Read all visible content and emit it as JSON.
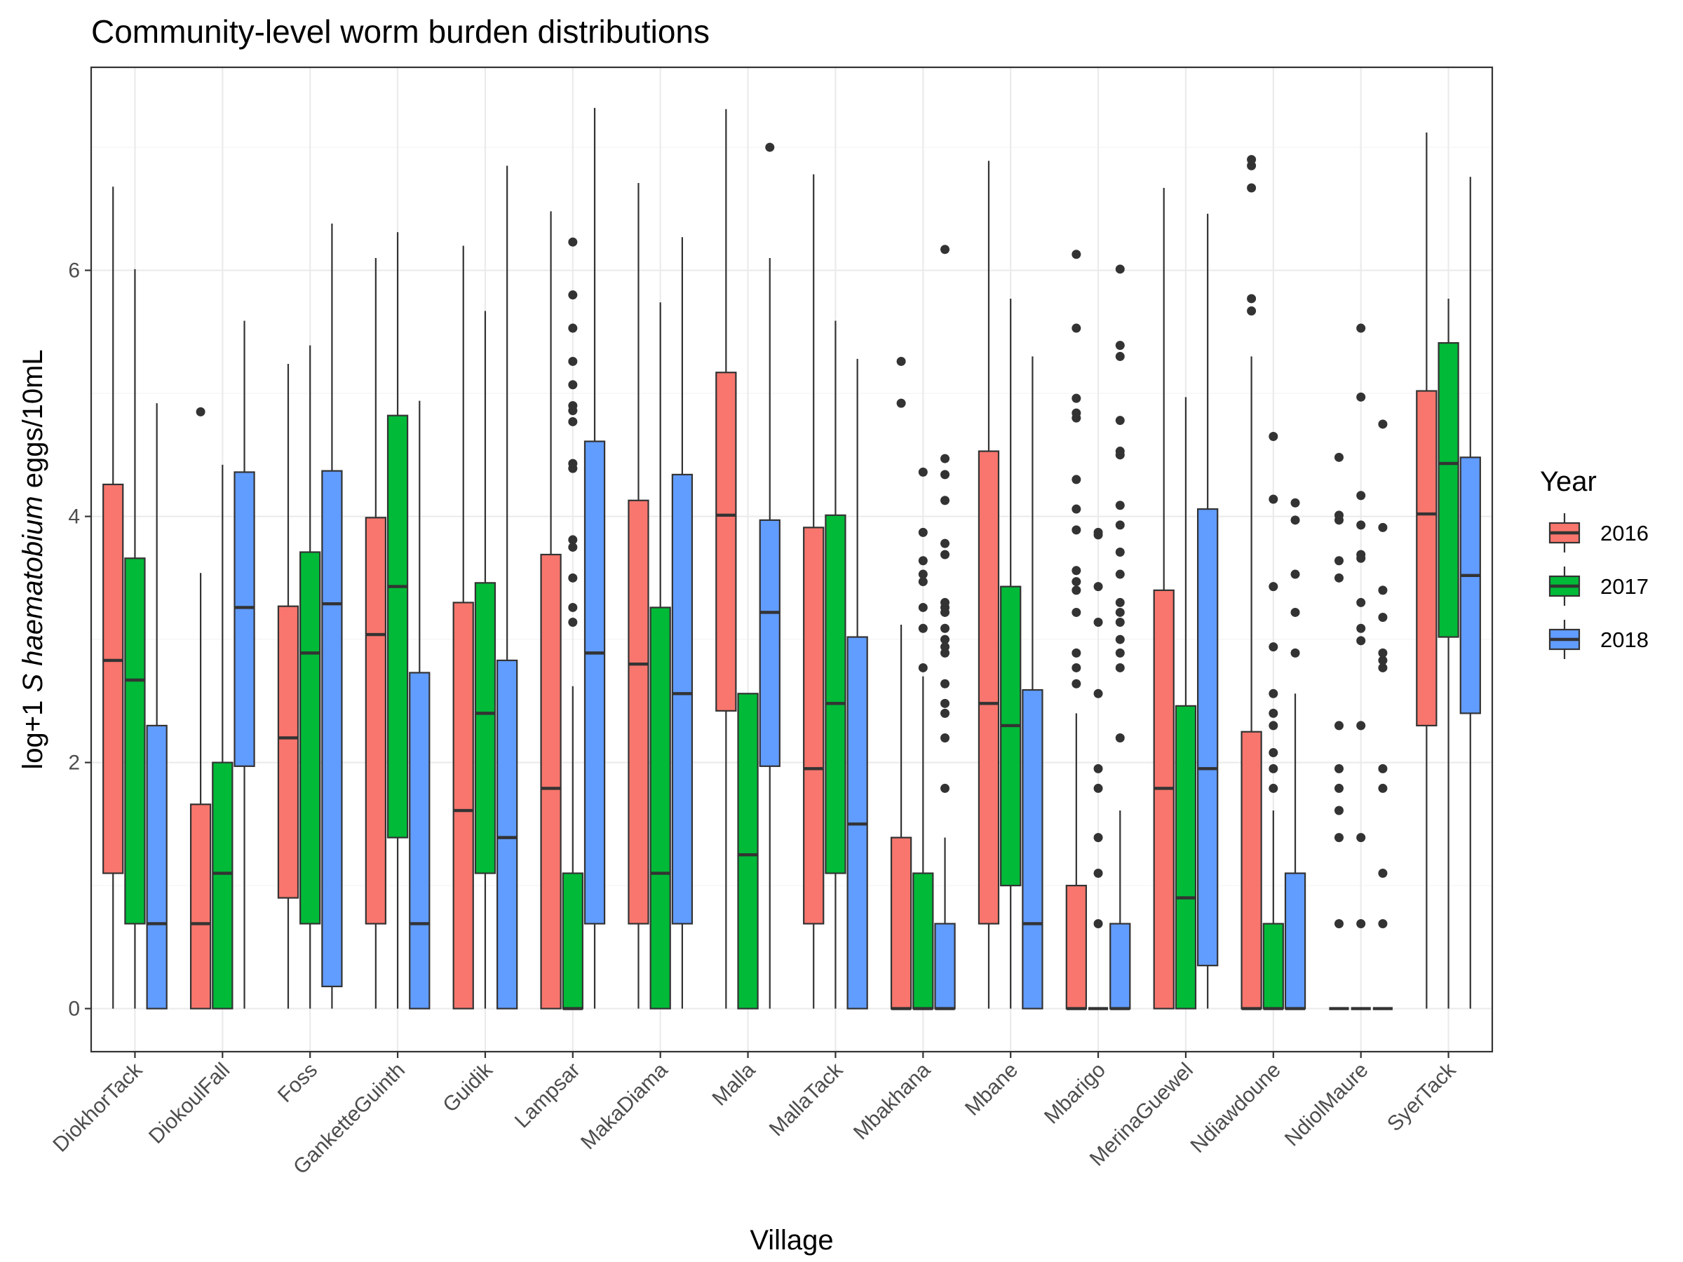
{
  "chart_data": {
    "type": "box",
    "title": "Community-level worm burden distributions",
    "xlabel": "Village",
    "ylabel_parts": [
      "log+1 ",
      "S haematobium",
      " eggs/10mL"
    ],
    "ylim": [
      -0.35,
      7.65
    ],
    "yticks": [
      0,
      2,
      4,
      6
    ],
    "legend": {
      "title": "Year",
      "position": "right",
      "items": [
        {
          "label": "2016",
          "color": "#F8766D"
        },
        {
          "label": "2017",
          "color": "#00BA38"
        },
        {
          "label": "2018",
          "color": "#619CFF"
        }
      ]
    },
    "categories": [
      "DiokhorTack",
      "DiokoulFall",
      "Foss",
      "GanketteGuinth",
      "Guidik",
      "Lampsar",
      "MakaDiama",
      "Malla",
      "MallaTack",
      "Mbakhana",
      "Mbane",
      "Mbarigo",
      "MerinaGuewel",
      "Ndiawdoune",
      "NdiolMaure",
      "SyerTack"
    ],
    "series": [
      {
        "name": "2016",
        "color": "#F8766D",
        "boxes": [
          {
            "lower": 0,
            "q1": 1.1,
            "median": 2.83,
            "q3": 4.26,
            "upper": 6.68,
            "outliers": []
          },
          {
            "lower": 0,
            "q1": 0,
            "median": 0.69,
            "q3": 1.66,
            "upper": 3.54,
            "outliers": [
              4.85
            ]
          },
          {
            "lower": 0,
            "q1": 0.9,
            "median": 2.2,
            "q3": 3.27,
            "upper": 5.24,
            "outliers": []
          },
          {
            "lower": 0,
            "q1": 0.69,
            "median": 3.04,
            "q3": 3.99,
            "upper": 6.1,
            "outliers": []
          },
          {
            "lower": 0,
            "q1": 0,
            "median": 1.61,
            "q3": 3.3,
            "upper": 6.2,
            "outliers": []
          },
          {
            "lower": 0,
            "q1": 0,
            "median": 1.79,
            "q3": 3.69,
            "upper": 6.48,
            "outliers": []
          },
          {
            "lower": 0,
            "q1": 0.69,
            "median": 2.8,
            "q3": 4.13,
            "upper": 6.71,
            "outliers": []
          },
          {
            "lower": 0,
            "q1": 2.42,
            "median": 4.01,
            "q3": 5.17,
            "upper": 7.31,
            "outliers": []
          },
          {
            "lower": 0,
            "q1": 0.69,
            "median": 1.95,
            "q3": 3.91,
            "upper": 6.78,
            "outliers": []
          },
          {
            "lower": 0,
            "q1": 0,
            "median": 0,
            "q3": 1.39,
            "upper": 3.12,
            "outliers": [
              4.92,
              5.26
            ]
          },
          {
            "lower": 0,
            "q1": 0.69,
            "median": 2.48,
            "q3": 4.53,
            "upper": 6.89,
            "outliers": []
          },
          {
            "lower": 0,
            "q1": 0,
            "median": 0,
            "q3": 1.0,
            "upper": 2.4,
            "outliers": [
              2.64,
              2.77,
              2.89,
              3.22,
              3.4,
              3.47,
              3.56,
              3.89,
              4.06,
              4.3,
              4.8,
              4.84,
              4.96,
              5.53,
              6.13
            ]
          },
          {
            "lower": 0,
            "q1": 0,
            "median": 1.79,
            "q3": 3.4,
            "upper": 6.67,
            "outliers": []
          },
          {
            "lower": 0,
            "q1": 0,
            "median": 0,
            "q3": 2.25,
            "upper": 5.3,
            "outliers": [
              5.67,
              5.77,
              6.67,
              6.85,
              6.9
            ]
          },
          {
            "lower": 0,
            "q1": 0,
            "median": 0,
            "q3": 0,
            "upper": 0,
            "outliers": [
              0.69,
              1.39,
              1.61,
              1.79,
              1.95,
              2.3,
              3.5,
              3.64,
              3.97,
              4.01,
              4.48
            ]
          },
          {
            "lower": 0,
            "q1": 2.3,
            "median": 4.02,
            "q3": 5.02,
            "upper": 7.12,
            "outliers": []
          }
        ]
      },
      {
        "name": "2017",
        "color": "#00BA38",
        "boxes": [
          {
            "lower": 0,
            "q1": 0.69,
            "median": 2.67,
            "q3": 3.66,
            "upper": 6.01,
            "outliers": []
          },
          {
            "lower": 0,
            "q1": 0,
            "median": 1.1,
            "q3": 2.0,
            "upper": 4.42,
            "outliers": []
          },
          {
            "lower": 0,
            "q1": 0.69,
            "median": 2.89,
            "q3": 3.71,
            "upper": 5.39,
            "outliers": []
          },
          {
            "lower": 0,
            "q1": 1.39,
            "median": 3.43,
            "q3": 4.82,
            "upper": 6.31,
            "outliers": []
          },
          {
            "lower": 0,
            "q1": 1.1,
            "median": 2.4,
            "q3": 3.46,
            "upper": 5.67,
            "outliers": []
          },
          {
            "lower": 0,
            "q1": 0,
            "median": 0,
            "q3": 1.1,
            "upper": 2.62,
            "outliers": [
              3.14,
              3.26,
              3.5,
              3.75,
              3.81,
              4.39,
              4.43,
              4.77,
              4.86,
              4.9,
              5.07,
              5.26,
              5.53,
              5.8,
              6.23
            ]
          },
          {
            "lower": 0,
            "q1": 0,
            "median": 1.1,
            "q3": 3.26,
            "upper": 5.74,
            "outliers": []
          },
          {
            "lower": 0,
            "q1": 0,
            "median": 1.25,
            "q3": 2.56,
            "upper": 2.56,
            "outliers": []
          },
          {
            "lower": 0,
            "q1": 1.1,
            "median": 2.48,
            "q3": 4.01,
            "upper": 5.59,
            "outliers": []
          },
          {
            "lower": 0,
            "q1": 0,
            "median": 0,
            "q3": 1.1,
            "upper": 2.7,
            "outliers": [
              2.77,
              3.09,
              3.26,
              3.47,
              3.53,
              3.64,
              3.87,
              4.36
            ]
          },
          {
            "lower": 0,
            "q1": 1.0,
            "median": 2.3,
            "q3": 3.43,
            "upper": 5.77,
            "outliers": []
          },
          {
            "lower": 0,
            "q1": 0,
            "median": 0,
            "q3": 0,
            "upper": 0,
            "outliers": [
              0.69,
              1.1,
              1.39,
              1.79,
              1.95,
              2.56,
              3.14,
              3.43,
              3.85,
              3.87
            ]
          },
          {
            "lower": 0,
            "q1": 0,
            "median": 0.9,
            "q3": 2.46,
            "upper": 4.97,
            "outliers": []
          },
          {
            "lower": 0,
            "q1": 0,
            "median": 0,
            "q3": 0.69,
            "upper": 1.61,
            "outliers": [
              1.79,
              1.95,
              2.08,
              2.3,
              2.4,
              2.56,
              2.94,
              3.43,
              4.14,
              4.65
            ]
          },
          {
            "lower": 0,
            "q1": 0,
            "median": 0,
            "q3": 0,
            "upper": 0,
            "outliers": [
              0.69,
              1.39,
              2.3,
              2.99,
              3.09,
              3.3,
              3.66,
              3.69,
              3.93,
              4.17,
              4.97,
              5.53
            ]
          },
          {
            "lower": 0,
            "q1": 3.02,
            "median": 4.43,
            "q3": 5.41,
            "upper": 5.77,
            "outliers": []
          }
        ]
      },
      {
        "name": "2018",
        "color": "#619CFF",
        "boxes": [
          {
            "lower": 0,
            "q1": 0,
            "median": 0.69,
            "q3": 2.3,
            "upper": 4.92,
            "outliers": []
          },
          {
            "lower": 0,
            "q1": 1.97,
            "median": 3.26,
            "q3": 4.36,
            "upper": 5.59,
            "outliers": []
          },
          {
            "lower": 0,
            "q1": 0.18,
            "median": 3.29,
            "q3": 4.37,
            "upper": 6.38,
            "outliers": []
          },
          {
            "lower": 0,
            "q1": 0,
            "median": 0.69,
            "q3": 2.73,
            "upper": 4.94,
            "outliers": []
          },
          {
            "lower": 0,
            "q1": 0,
            "median": 1.39,
            "q3": 2.83,
            "upper": 6.85,
            "outliers": []
          },
          {
            "lower": 0,
            "q1": 0.69,
            "median": 2.89,
            "q3": 4.61,
            "upper": 7.32,
            "outliers": []
          },
          {
            "lower": 0,
            "q1": 0.69,
            "median": 2.56,
            "q3": 4.34,
            "upper": 6.27,
            "outliers": []
          },
          {
            "lower": 0,
            "q1": 1.97,
            "median": 3.22,
            "q3": 3.97,
            "upper": 6.1,
            "outliers": [
              7.0
            ]
          },
          {
            "lower": 0,
            "q1": 0,
            "median": 1.5,
            "q3": 3.02,
            "upper": 5.28,
            "outliers": []
          },
          {
            "lower": 0,
            "q1": 0,
            "median": 0,
            "q3": 0.69,
            "upper": 1.39,
            "outliers": [
              1.79,
              2.2,
              2.4,
              2.48,
              2.64,
              2.89,
              2.94,
              3.0,
              3.09,
              3.22,
              3.26,
              3.3,
              3.69,
              3.78,
              4.13,
              4.34,
              4.47,
              6.17
            ]
          },
          {
            "lower": 0,
            "q1": 0,
            "median": 0.69,
            "q3": 2.59,
            "upper": 5.3,
            "outliers": []
          },
          {
            "lower": 0,
            "q1": 0,
            "median": 0,
            "q3": 0.69,
            "upper": 1.61,
            "outliers": [
              2.2,
              2.77,
              2.89,
              3.0,
              3.14,
              3.22,
              3.3,
              3.53,
              3.71,
              3.93,
              4.09,
              4.5,
              4.53,
              4.78,
              5.3,
              5.39,
              6.01
            ]
          },
          {
            "lower": 0,
            "q1": 0.35,
            "median": 1.95,
            "q3": 4.06,
            "upper": 6.46,
            "outliers": []
          },
          {
            "lower": 0,
            "q1": 0,
            "median": 0,
            "q3": 1.1,
            "upper": 2.56,
            "outliers": [
              2.89,
              3.22,
              3.53,
              3.97,
              4.11
            ]
          },
          {
            "lower": 0,
            "q1": 0,
            "median": 0,
            "q3": 0,
            "upper": 0,
            "outliers": [
              0.69,
              1.1,
              1.79,
              1.95,
              2.77,
              2.83,
              2.89,
              3.18,
              3.4,
              3.91,
              4.75
            ]
          },
          {
            "lower": 0,
            "q1": 2.4,
            "median": 3.52,
            "q3": 4.48,
            "upper": 6.76,
            "outliers": []
          }
        ]
      }
    ]
  }
}
